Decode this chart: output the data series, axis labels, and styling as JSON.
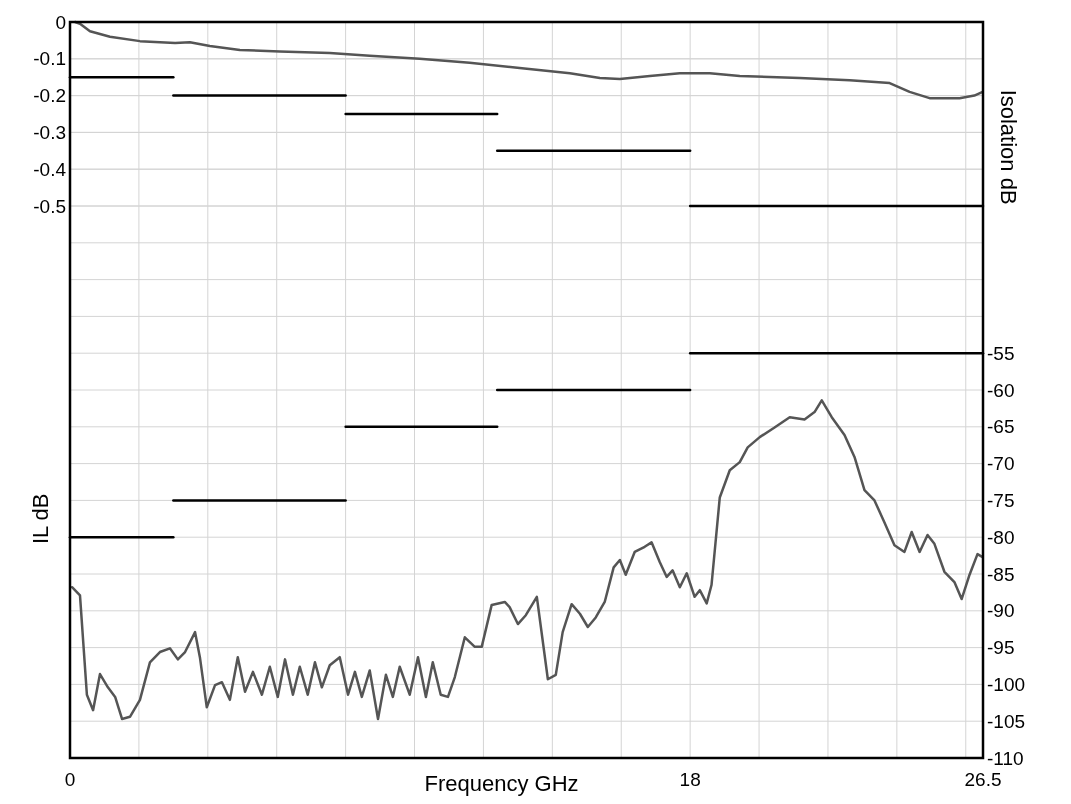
{
  "chart_data": {
    "type": "line",
    "xlabel": "Frequency GHz",
    "ylabel": "IL dB",
    "y2label": "Isolation dB",
    "xlim": [
      0,
      26.5
    ],
    "xticks": [
      0,
      {
        "value": 2,
        "label": null
      },
      {
        "value": 4,
        "label": null
      },
      {
        "value": 6,
        "label": null
      },
      {
        "value": 8,
        "label": null
      },
      {
        "value": 10,
        "label": null
      },
      {
        "value": 12,
        "label": null
      },
      {
        "value": 14,
        "label": null
      },
      {
        "value": 16,
        "label": null
      },
      18,
      {
        "value": 20,
        "label": null
      },
      {
        "value": 22,
        "label": null
      },
      {
        "value": 24,
        "label": null
      },
      {
        "value": 26,
        "label": null
      },
      26.5
    ],
    "ylim": [
      -2,
      0
    ],
    "yticks": [
      0,
      -0.1,
      -0.2,
      -0.3,
      -0.4,
      -0.5
    ],
    "y2lim": [
      -110,
      -10
    ],
    "y2ticks": [
      {
        "value": -15,
        "label": null
      },
      {
        "value": -20,
        "label": null
      },
      {
        "value": -25,
        "label": null
      },
      {
        "value": -30,
        "label": null
      },
      {
        "value": -35,
        "label": null
      },
      {
        "value": -40,
        "label": null
      },
      {
        "value": -45,
        "label": null
      },
      {
        "value": -50,
        "label": null
      },
      -55,
      -60,
      -65,
      -70,
      -75,
      -80,
      -85,
      -90,
      -95,
      -100,
      -105,
      -110
    ],
    "grid": true,
    "marker": "none",
    "line_style": "solid",
    "series": [
      {
        "color": "#555555",
        "x": [
          0.15,
          0.29,
          0.58,
          1.16,
          2.03,
          3.05,
          3.48,
          4.06,
          4.93,
          6.09,
          7.54,
          8.7,
          10.15,
          11.6,
          13.05,
          14.51,
          15.38,
          15.96,
          16.83,
          17.7,
          18.57,
          19.44,
          21.18,
          22.63,
          23.79,
          24.37,
          24.95,
          25.82,
          26.25,
          26.49
        ],
        "values": [
          0,
          -0.005,
          -0.025,
          -0.04,
          -0.052,
          -0.057,
          -0.055,
          -0.065,
          -0.076,
          -0.08,
          -0.084,
          -0.092,
          -0.1,
          -0.111,
          -0.125,
          -0.139,
          -0.152,
          -0.155,
          -0.147,
          -0.139,
          -0.139,
          -0.147,
          -0.152,
          -0.158,
          -0.166,
          -0.19,
          -0.207,
          -0.207,
          -0.2,
          -0.19
        ]
      },
      {
        "color": "#555555",
        "axis": "y2",
        "x": [
          0.06,
          0.29,
          0.49,
          0.67,
          0.87,
          1.1,
          1.31,
          1.51,
          1.74,
          2.03,
          2.32,
          2.61,
          2.9,
          3.13,
          3.34,
          3.63,
          3.77,
          3.97,
          4.21,
          4.41,
          4.64,
          4.87,
          5.08,
          5.31,
          5.57,
          5.8,
          6.03,
          6.24,
          6.47,
          6.67,
          6.9,
          7.11,
          7.31,
          7.54,
          7.83,
          8.07,
          8.27,
          8.47,
          8.7,
          8.94,
          9.17,
          9.37,
          9.57,
          9.86,
          10.1,
          10.33,
          10.53,
          10.76,
          10.97,
          11.17,
          11.46,
          11.75,
          11.95,
          12.24,
          12.62,
          12.76,
          13.0,
          13.23,
          13.55,
          13.87,
          14.1,
          14.3,
          14.56,
          14.8,
          15.03,
          15.26,
          15.52,
          15.78,
          15.96,
          16.13,
          16.39,
          16.68,
          16.88,
          17.12,
          17.32,
          17.49,
          17.7,
          17.9,
          18.13,
          18.28,
          18.48,
          18.62,
          18.86,
          19.15,
          19.44,
          19.67,
          20.02,
          20.45,
          20.89,
          21.32,
          21.61,
          21.82,
          22.11,
          22.48,
          22.77,
          23.06,
          23.35,
          23.64,
          23.93,
          24.22,
          24.43,
          24.66,
          24.89,
          25.09,
          25.38,
          25.67,
          25.88,
          26.11,
          26.34,
          26.49
        ],
        "values": [
          -86.8,
          -87.9,
          -101.4,
          -103.5,
          -98.6,
          -100.4,
          -101.7,
          -104.7,
          -104.4,
          -102.1,
          -97,
          -95.6,
          -95.1,
          -96.6,
          -95.6,
          -92.9,
          -96.3,
          -103.1,
          -100.1,
          -99.7,
          -102.1,
          -96.3,
          -101,
          -98.3,
          -101.4,
          -97.6,
          -101.7,
          -96.6,
          -101.4,
          -97.6,
          -101.4,
          -97,
          -100.4,
          -97.4,
          -96.3,
          -101.4,
          -98.3,
          -101.7,
          -98.1,
          -104.7,
          -98.7,
          -101.7,
          -97.6,
          -101.4,
          -96.3,
          -101.7,
          -97,
          -101.4,
          -101.7,
          -99,
          -93.6,
          -94.9,
          -94.9,
          -89.2,
          -88.8,
          -89.5,
          -91.8,
          -90.6,
          -88.1,
          -99.3,
          -98.7,
          -92.9,
          -89.1,
          -90.4,
          -92.2,
          -90.9,
          -88.8,
          -84.1,
          -83.1,
          -85.1,
          -82,
          -81.3,
          -80.7,
          -83.4,
          -85.4,
          -84.5,
          -86.8,
          -84.9,
          -88.1,
          -87.2,
          -89,
          -86.5,
          -74.6,
          -70.9,
          -69.8,
          -67.8,
          -66.4,
          -65.1,
          -63.7,
          -64,
          -63,
          -61.4,
          -63.7,
          -66.1,
          -69.1,
          -73.6,
          -75,
          -78,
          -81.1,
          -82,
          -79.3,
          -82,
          -79.7,
          -80.9,
          -84.7,
          -86.1,
          -88.4,
          -85.1,
          -82.3,
          -82.7
        ]
      },
      {
        "color": "#000000",
        "x": [
          0,
          3
        ],
        "values": [
          -0.15,
          -0.15
        ]
      },
      {
        "color": "#000000",
        "x": [
          3,
          8
        ],
        "values": [
          -0.2,
          -0.2
        ]
      },
      {
        "color": "#000000",
        "x": [
          8,
          12.4
        ],
        "values": [
          -0.25,
          -0.25
        ]
      },
      {
        "color": "#000000",
        "x": [
          12.4,
          18
        ],
        "values": [
          -0.35,
          -0.35
        ]
      },
      {
        "color": "#000000",
        "x": [
          18,
          26.5
        ],
        "values": [
          -0.5,
          -0.5
        ]
      },
      {
        "color": "#000000",
        "axis": "y2",
        "x": [
          0,
          3
        ],
        "values": [
          -80,
          -80
        ]
      },
      {
        "color": "#000000",
        "axis": "y2",
        "x": [
          3,
          8
        ],
        "values": [
          -75,
          -75
        ]
      },
      {
        "color": "#000000",
        "axis": "y2",
        "x": [
          8,
          12.4
        ],
        "values": [
          -65,
          -65
        ]
      },
      {
        "color": "#000000",
        "axis": "y2",
        "x": [
          12.4,
          18
        ],
        "values": [
          -60,
          -60
        ]
      },
      {
        "color": "#000000",
        "axis": "y2",
        "x": [
          18,
          26.5
        ],
        "values": [
          -55,
          -55
        ]
      }
    ]
  }
}
